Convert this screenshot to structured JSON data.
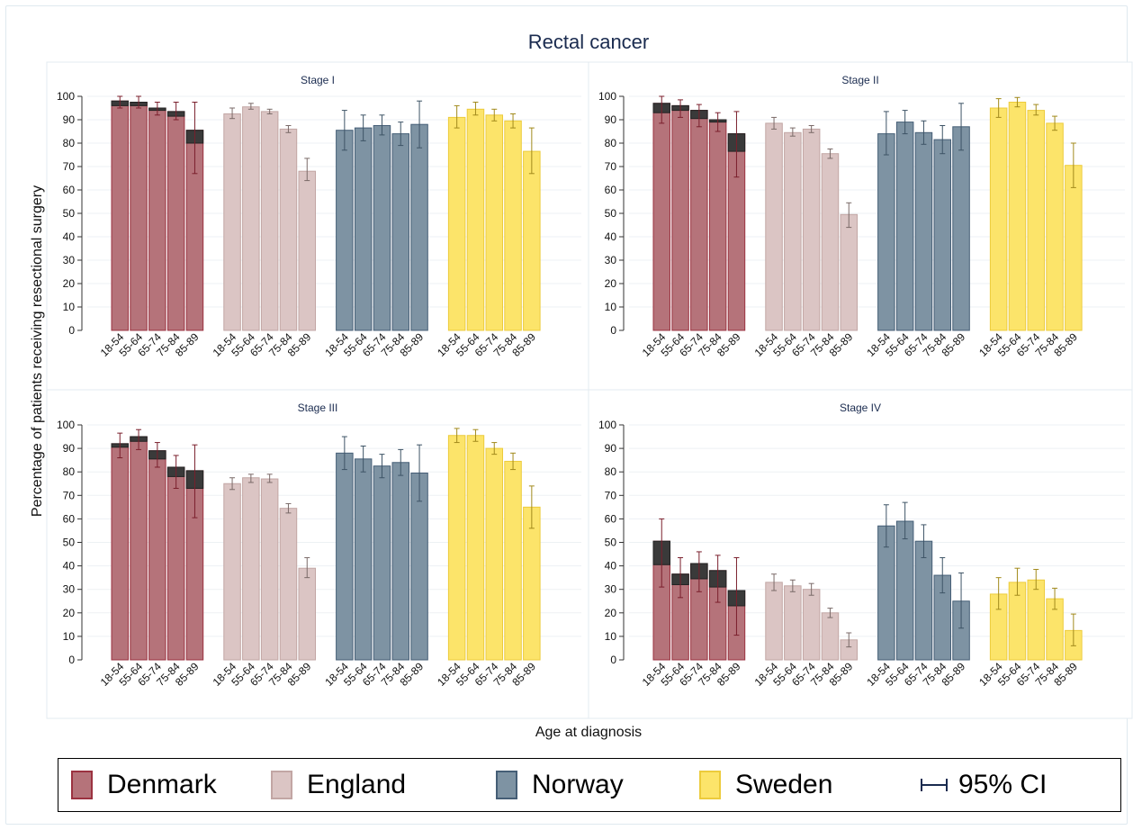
{
  "figure": {
    "title": "Rectal cancer",
    "ylabel": "Percentage of patients receiving resectional surgery",
    "xlabel": "Age at diagnosis"
  },
  "legend": {
    "items": [
      {
        "label": "Denmark",
        "color": "#b5737a",
        "border": "#9b3240"
      },
      {
        "label": "England",
        "color": "#dbc5c4",
        "border": "#c2a6a4"
      },
      {
        "label": "Norway",
        "color": "#7e93a3",
        "border": "#455e76"
      },
      {
        "label": "Sweden",
        "color": "#fce46a",
        "border": "#eccb3c"
      }
    ],
    "ci_label": "95% CI"
  },
  "colors": {
    "denmark_fill": "#b5737a",
    "denmark_edge": "#9b3240",
    "denmark_ci": "#7a1f2c",
    "england_fill": "#dbc5c4",
    "england_edge": "#c2a6a4",
    "england_ci": "#7a6a68",
    "norway_fill": "#7e93a3",
    "norway_edge": "#455e76",
    "norway_ci": "#3e5466",
    "sweden_fill": "#fce46a",
    "sweden_edge": "#eccb3c",
    "sweden_ci": "#a28a1c",
    "overlay": "#3a3a3a",
    "title_color": "#1a2b4f"
  },
  "chart_data": [
    {
      "type": "bar",
      "title": "Stage I",
      "categories": [
        "18-54",
        "55-64",
        "65-74",
        "75-84",
        "85-89"
      ],
      "ylim": [
        0,
        100
      ],
      "yticks": [
        0,
        10,
        20,
        30,
        40,
        50,
        60,
        70,
        80,
        90,
        100
      ],
      "series": [
        {
          "name": "Denmark",
          "values": [
            98,
            97.5,
            95,
            93.5,
            85.5
          ],
          "overlay_low": [
            96,
            96,
            94,
            91.5,
            80
          ],
          "ci_low": [
            95,
            95,
            92,
            90,
            67
          ],
          "ci_high": [
            100,
            100,
            97.5,
            97.5,
            97.5
          ]
        },
        {
          "name": "England",
          "values": [
            92.5,
            95.5,
            93.5,
            86,
            68
          ],
          "ci_low": [
            90.5,
            94.5,
            92.5,
            84.5,
            64
          ],
          "ci_high": [
            95,
            97,
            94.5,
            87.5,
            73.5
          ]
        },
        {
          "name": "Norway",
          "values": [
            85.5,
            86.5,
            87.5,
            84,
            88
          ],
          "ci_low": [
            77,
            81,
            83.5,
            79,
            78
          ],
          "ci_high": [
            94,
            92,
            92,
            89,
            98
          ]
        },
        {
          "name": "Sweden",
          "values": [
            91,
            94.5,
            92,
            89.5,
            76.5
          ],
          "ci_low": [
            86.5,
            92,
            89.5,
            86.5,
            67
          ],
          "ci_high": [
            96,
            97.5,
            94.5,
            92.5,
            86.5
          ]
        }
      ]
    },
    {
      "type": "bar",
      "title": "Stage II",
      "categories": [
        "18-54",
        "55-64",
        "65-74",
        "75-84",
        "85-89"
      ],
      "ylim": [
        0,
        100
      ],
      "yticks": [
        0,
        10,
        20,
        30,
        40,
        50,
        60,
        70,
        80,
        90,
        100
      ],
      "series": [
        {
          "name": "Denmark",
          "values": [
            97,
            96,
            94,
            90,
            84
          ],
          "overlay_low": [
            93,
            94,
            90.5,
            89,
            76.5
          ],
          "ci_low": [
            88.5,
            91,
            87,
            85,
            65.5
          ],
          "ci_high": [
            100,
            98.5,
            96.5,
            93,
            93.5
          ]
        },
        {
          "name": "England",
          "values": [
            88.5,
            84.5,
            86,
            75.5,
            49.5
          ],
          "ci_low": [
            86,
            83,
            84.5,
            73.5,
            44
          ],
          "ci_high": [
            91,
            86.5,
            87.5,
            77.5,
            54.5
          ]
        },
        {
          "name": "Norway",
          "values": [
            84,
            89,
            84.5,
            81.5,
            87
          ],
          "ci_low": [
            75,
            84,
            79.5,
            75.5,
            77
          ],
          "ci_high": [
            93.5,
            94,
            89.5,
            87.5,
            97
          ]
        },
        {
          "name": "Sweden",
          "values": [
            95,
            97.5,
            94,
            88.5,
            70.5
          ],
          "ci_low": [
            91,
            95.5,
            92,
            85.5,
            61
          ],
          "ci_high": [
            99,
            99.5,
            96.5,
            91.5,
            80
          ]
        }
      ]
    },
    {
      "type": "bar",
      "title": "Stage III",
      "categories": [
        "18-54",
        "55-64",
        "65-74",
        "75-84",
        "85-89"
      ],
      "ylim": [
        0,
        100
      ],
      "yticks": [
        0,
        10,
        20,
        30,
        40,
        50,
        60,
        70,
        80,
        90,
        100
      ],
      "series": [
        {
          "name": "Denmark",
          "values": [
            92,
            95,
            89,
            82,
            80.5
          ],
          "overlay_low": [
            90.5,
            93,
            85.5,
            78,
            73
          ],
          "ci_low": [
            86,
            89.5,
            82,
            73,
            60.5
          ],
          "ci_high": [
            96.5,
            98,
            92.5,
            87,
            91.5
          ]
        },
        {
          "name": "England",
          "values": [
            75,
            77.5,
            77,
            64.5,
            39
          ],
          "ci_low": [
            72.5,
            75.5,
            75.5,
            62.5,
            35
          ],
          "ci_high": [
            77.5,
            79,
            79,
            66.5,
            43.5
          ]
        },
        {
          "name": "Norway",
          "values": [
            88,
            85.5,
            82.5,
            84,
            79.5
          ],
          "ci_low": [
            81,
            80,
            77.5,
            78.5,
            67.5
          ],
          "ci_high": [
            95,
            91,
            87.5,
            89.5,
            91.5
          ]
        },
        {
          "name": "Sweden",
          "values": [
            95.5,
            95.5,
            90,
            84.5,
            65
          ],
          "ci_low": [
            92.5,
            93,
            87.5,
            81,
            56
          ],
          "ci_high": [
            98.5,
            98,
            92.5,
            88,
            74
          ]
        }
      ]
    },
    {
      "type": "bar",
      "title": "Stage IV",
      "categories": [
        "18-54",
        "55-64",
        "65-74",
        "75-84",
        "85-89"
      ],
      "ylim": [
        0,
        100
      ],
      "yticks": [
        0,
        10,
        20,
        30,
        40,
        50,
        60,
        70,
        80,
        90,
        100
      ],
      "series": [
        {
          "name": "Denmark",
          "values": [
            50.5,
            36.5,
            41,
            38,
            29.5
          ],
          "overlay_low": [
            40.5,
            32,
            34.5,
            31,
            23
          ],
          "ci_low": [
            31,
            26.5,
            29,
            24.5,
            10.5
          ],
          "ci_high": [
            60,
            43.5,
            46,
            44.5,
            43.5
          ]
        },
        {
          "name": "England",
          "values": [
            33,
            31.5,
            30,
            20,
            8.5
          ],
          "ci_low": [
            29.5,
            29,
            27.5,
            18,
            5.5
          ],
          "ci_high": [
            36.5,
            34,
            32.5,
            22,
            11.5
          ]
        },
        {
          "name": "Norway",
          "values": [
            57,
            59,
            50.5,
            36,
            25
          ],
          "ci_low": [
            48,
            51.5,
            43.5,
            28.5,
            13.5
          ],
          "ci_high": [
            66,
            67,
            57.5,
            43.5,
            37
          ]
        },
        {
          "name": "Sweden",
          "values": [
            28,
            33,
            34,
            26,
            12.5
          ],
          "ci_low": [
            21.5,
            27.5,
            30,
            21.5,
            6
          ],
          "ci_high": [
            35,
            39,
            38.5,
            30.5,
            19.5
          ]
        }
      ]
    }
  ]
}
